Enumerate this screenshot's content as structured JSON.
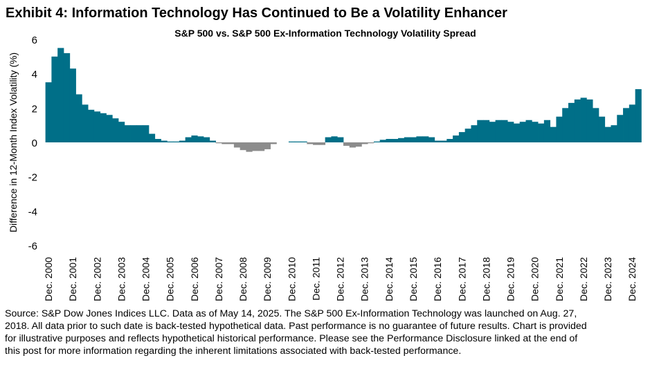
{
  "chart_data": {
    "type": "area",
    "title": "Exhibit 4: Information Technology Has Continued to Be a Volatility Enhancer",
    "subtitle": "S&P 500 vs. S&P 500 Ex-Information Technology Volatility Spread",
    "y_label": "Difference in 12-Month Index Volatility (%)",
    "color": "#006f88",
    "negative_color": "#8c8c8c",
    "ylim": [
      -6,
      6
    ],
    "yticks": [
      -6,
      -4,
      -2,
      0,
      2,
      4,
      6
    ],
    "grid": false,
    "categories": [
      "Dec. 2000",
      null,
      null,
      null,
      "Dec. 2001",
      null,
      null,
      null,
      "Dec. 2002",
      null,
      null,
      null,
      "Dec. 2003",
      null,
      null,
      null,
      "Dec. 2004",
      null,
      null,
      null,
      "Dec. 2005",
      null,
      null,
      null,
      "Dec. 2006",
      null,
      null,
      null,
      "Dec. 2007",
      null,
      null,
      null,
      "Dec. 2008",
      null,
      null,
      null,
      "Dec. 2009",
      null,
      null,
      null,
      "Dec. 2010",
      null,
      null,
      null,
      "Dec. 2011",
      null,
      null,
      null,
      "Dec. 2012",
      null,
      null,
      null,
      "Dec. 2013",
      null,
      null,
      null,
      "Dec. 2014",
      null,
      null,
      null,
      "Dec. 2015",
      null,
      null,
      null,
      "Dec. 2016",
      null,
      null,
      null,
      "Dec. 2017",
      null,
      null,
      null,
      "Dec. 2018",
      null,
      null,
      null,
      "Dec. 2019",
      null,
      null,
      null,
      "Dec. 2020",
      null,
      null,
      null,
      "Dec. 2021",
      null,
      null,
      null,
      "Dec. 2022",
      null,
      null,
      null,
      "Dec. 2023",
      null,
      null,
      null,
      "Dec. 2024",
      null
    ],
    "values": [
      3.5,
      5.0,
      5.5,
      5.2,
      4.3,
      2.8,
      2.2,
      1.9,
      1.8,
      1.7,
      1.6,
      1.4,
      1.2,
      1.0,
      1.0,
      1.0,
      1.0,
      0.5,
      0.2,
      0.1,
      0.05,
      0.05,
      0.1,
      0.3,
      0.4,
      0.35,
      0.3,
      0.1,
      -0.05,
      -0.1,
      -0.1,
      -0.3,
      -0.45,
      -0.55,
      -0.5,
      -0.5,
      -0.4,
      -0.1,
      0.0,
      0.0,
      0.05,
      0.05,
      0.05,
      -0.1,
      -0.15,
      -0.15,
      0.3,
      0.35,
      0.3,
      -0.2,
      -0.3,
      -0.25,
      -0.1,
      -0.05,
      0.05,
      0.15,
      0.2,
      0.2,
      0.25,
      0.3,
      0.3,
      0.35,
      0.35,
      0.3,
      0.1,
      0.1,
      0.2,
      0.4,
      0.6,
      0.8,
      1.0,
      1.3,
      1.3,
      1.2,
      1.3,
      1.3,
      1.2,
      1.1,
      1.2,
      1.3,
      1.2,
      1.1,
      1.3,
      0.9,
      1.5,
      2.0,
      2.3,
      2.5,
      2.6,
      2.5,
      2.0,
      1.5,
      0.9,
      1.0,
      1.6,
      2.0,
      2.2,
      3.1
    ],
    "notes": [
      "Source: S&P Dow Jones Indices LLC. Data as of May 14, 2025. The S&P 500 Ex-Information Technology was launched on Aug. 27,",
      "2018. All data prior to such date is back-tested hypothetical data. Past performance is no guarantee of future results. Chart is provided",
      "for illustrative purposes and reflects hypothetical historical performance. Please see the Performance Disclosure linked at the end of",
      "this post for more information regarding the inherent limitations associated with back-tested performance."
    ]
  }
}
